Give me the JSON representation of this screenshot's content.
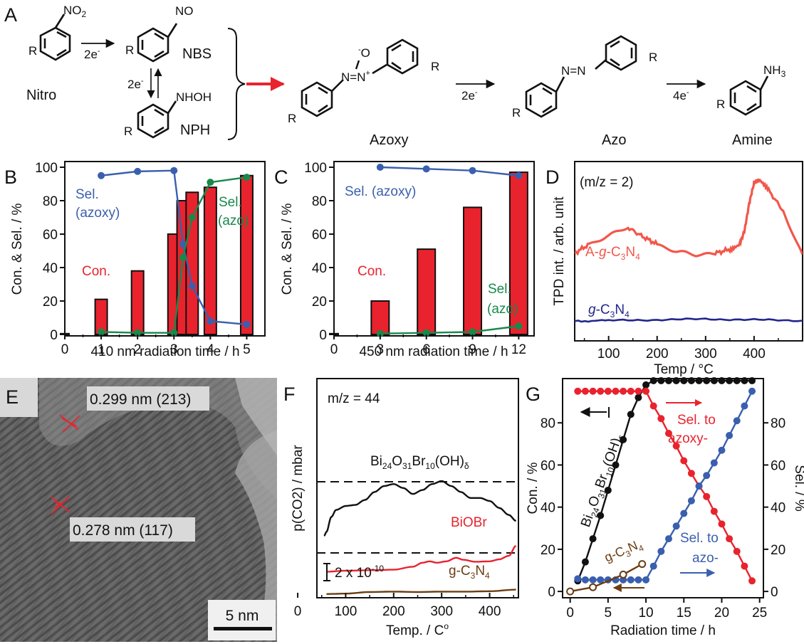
{
  "panel_labels": {
    "a": "A",
    "b": "B",
    "c": "C",
    "d": "D",
    "e": "E",
    "f": "F",
    "g": "G"
  },
  "scheme": {
    "nitro_sub": "NO",
    "nitro_sub_sub": "2",
    "nitro_name": "Nitro",
    "nbs_sub": "NO",
    "nbs_name": "NBS",
    "nph_sub": "NHOH",
    "nph_name": "NPH",
    "step1_electrons": "2e",
    "step2_electrons": "2e",
    "step3_electrons": "2e",
    "step4_electrons": "4e",
    "electron_charge": "-",
    "r_group": "R",
    "azoxy_o": "O",
    "azoxy_o_charge": "-",
    "azoxy_core": "N=N",
    "azoxy_n_charge": "+",
    "azoxy_name": "Azoxy",
    "azo_core": "N=N",
    "azo_name": "Azo",
    "amine_sub": "NH",
    "amine_sub_sub": "3",
    "amine_name": "Amine",
    "arrow_color": "#e8232e"
  },
  "colors": {
    "red": "#e8232e",
    "blue": "#3a5fae",
    "green": "#17894a",
    "black": "#111111",
    "brown": "#6b3d12",
    "navy": "#23268c",
    "salmon": "#f2574b"
  },
  "chart_data": [
    {
      "panel": "B",
      "type": "bar",
      "xlabel": "410 nm radiation time / h",
      "ylabel": "Con. & Sel. / %",
      "xlim": [
        0,
        5.5
      ],
      "ylim": [
        0,
        100
      ],
      "xticks": [
        "0",
        "1",
        "2",
        "3",
        "4",
        "5"
      ],
      "yticks": [
        "0",
        "20",
        "40",
        "60",
        "80",
        "100"
      ],
      "bars": {
        "name": "Con.",
        "x": [
          0,
          1,
          2,
          3,
          3.25,
          3.5,
          4,
          5
        ],
        "values": [
          0.5,
          21,
          38,
          60,
          80,
          85,
          88,
          95
        ]
      },
      "series": [
        {
          "name": "Sel. (azoxy)",
          "x": [
            1,
            2,
            3,
            3.25,
            3.5,
            4,
            5
          ],
          "values": [
            95,
            97.5,
            98,
            54,
            29,
            8,
            6
          ]
        },
        {
          "name": "Sel. (azo)",
          "x": [
            1,
            2,
            3,
            3.25,
            3.5,
            4,
            5
          ],
          "values": [
            1.5,
            1,
            1,
            46,
            70,
            91,
            94
          ]
        }
      ],
      "labels": {
        "sel_azoxy_1": "Sel.",
        "sel_azoxy_2": "(azoxy)",
        "sel_azo_1": "Sel.",
        "sel_azo_2": "(azo)",
        "con": "Con."
      }
    },
    {
      "panel": "C",
      "type": "bar",
      "xlabel": "450 nm radiation time / h",
      "ylabel": "Con. & Sel. / %",
      "xlim": [
        0,
        13
      ],
      "ylim": [
        0,
        100
      ],
      "xticks": [
        "0",
        "3",
        "6",
        "9",
        "12"
      ],
      "yticks": [
        "0",
        "20",
        "40",
        "60",
        "80",
        "100"
      ],
      "bars": {
        "name": "Con.",
        "x": [
          0,
          3,
          6,
          9,
          12
        ],
        "values": [
          0.5,
          20,
          51,
          76,
          97
        ]
      },
      "series": [
        {
          "name": "Sel. (azoxy)",
          "x": [
            3,
            6,
            9,
            12
          ],
          "values": [
            100,
            99,
            98,
            95
          ]
        },
        {
          "name": "Sel. (azo)",
          "x": [
            3,
            6,
            9,
            12
          ],
          "values": [
            0.5,
            1,
            1.5,
            5
          ]
        }
      ],
      "labels": {
        "sel_azoxy": "Sel. (azoxy)",
        "sel_azo_1": "Sel.",
        "sel_azo_2": "(azo)",
        "con": "Con."
      }
    },
    {
      "panel": "D",
      "type": "line",
      "xlabel": "Temp / °C",
      "ylabel": "TPD int. / arb. unit",
      "annotation": "(m/z = 2)",
      "xlim": [
        30,
        500
      ],
      "xticks": [
        "100",
        "200",
        "300",
        "400"
      ],
      "series": [
        {
          "name": "A-g-C3N4",
          "x": [
            30,
            60,
            100,
            140,
            170,
            200,
            240,
            280,
            320,
            350,
            370,
            380,
            390,
            400,
            410,
            430,
            460,
            500
          ],
          "values": [
            2.95,
            3.3,
            3.6,
            3.95,
            3.6,
            3.3,
            3.0,
            2.85,
            2.95,
            3.1,
            3.3,
            3.8,
            4.9,
            5.7,
            5.8,
            5.4,
            4.6,
            2.9
          ]
        },
        {
          "name": "g-C3N4",
          "x": [
            30,
            100,
            200,
            300,
            400,
            500
          ],
          "values": [
            0.3,
            0.32,
            0.35,
            0.38,
            0.35,
            0.32
          ]
        }
      ],
      "labels": {
        "a_prefix": "A-",
        "g": "g",
        "c3n4_pre": "-C",
        "c3n4_sub1": "3",
        "c3n4_n": "N",
        "c3n4_sub2": "4"
      }
    },
    {
      "panel": "F",
      "type": "line",
      "xlabel": "Temp. / C",
      "xlabel_super": "o",
      "ylabel": "p(CO2) / mbar",
      "annotation": "m/z = 44",
      "scale_bar": "2 x 10",
      "scale_bar_exp": "-10",
      "xlim": [
        40,
        460
      ],
      "xticks": [
        "0",
        "100",
        "200",
        "300",
        "400"
      ],
      "series": [
        {
          "name": "Bi24O31Br10(OH)δ",
          "x": [
            55,
            60,
            70,
            80,
            100,
            120,
            140,
            160,
            180,
            200,
            220,
            240,
            260,
            280,
            300,
            320,
            340,
            360,
            380,
            400,
            420,
            440,
            455
          ],
          "values": [
            3.0,
            3.2,
            3.95,
            4.3,
            4.5,
            4.55,
            4.8,
            5.2,
            5.5,
            5.6,
            5.4,
            5.1,
            5.3,
            5.6,
            5.75,
            5.5,
            5.2,
            4.9,
            4.9,
            4.75,
            4.4,
            4.05,
            3.75
          ]
        },
        {
          "name": "BiOBr",
          "x": [
            60,
            100,
            160,
            200,
            240,
            260,
            275,
            290,
            310,
            330,
            345,
            370,
            400,
            420,
            440,
            455
          ],
          "values": [
            1.2,
            1.25,
            1.28,
            1.3,
            1.45,
            1.65,
            1.72,
            1.65,
            1.72,
            1.9,
            1.8,
            1.7,
            1.72,
            1.82,
            2.0,
            2.5
          ]
        },
        {
          "name": "g-C3N4",
          "x": [
            60,
            100,
            150,
            200,
            250,
            300,
            350,
            400,
            455
          ],
          "values": [
            0.08,
            0.1,
            0.18,
            0.2,
            0.18,
            0.2,
            0.2,
            0.22,
            0.3
          ]
        }
      ],
      "labels": {
        "bi_1": "Bi",
        "bi_2": "24",
        "bi_3": "O",
        "bi_4": "31",
        "bi_5": "Br",
        "bi_6": "10",
        "bi_7": "(OH)",
        "bi_8": "δ",
        "biobr": "BiOBr",
        "gcn_1": "g-C",
        "gcn_2": "3",
        "gcn_3": "N",
        "gcn_4": "4"
      }
    },
    {
      "panel": "G",
      "type": "line",
      "xlabel": "Radiation time / h",
      "ylabel_left": "Con. / %",
      "ylabel_right": "Sel. / %",
      "xlim": [
        -1,
        25.5
      ],
      "ylim": [
        -3,
        101
      ],
      "xticks": [
        "0",
        "5",
        "10",
        "15",
        "20",
        "25"
      ],
      "yticks_left": [
        "0",
        "20",
        "40",
        "60",
        "80"
      ],
      "yticks_right": [
        "0",
        "20",
        "40",
        "60",
        "80"
      ],
      "series": [
        {
          "name": "Bi24O31Br10(OH)δ",
          "x": [
            1,
            2,
            3,
            4,
            5,
            6,
            7,
            8,
            9,
            10,
            11,
            12,
            13,
            14,
            15,
            16,
            17,
            18,
            19,
            20,
            21,
            22,
            23,
            24
          ],
          "values": [
            5,
            14,
            25,
            36,
            48,
            60,
            72,
            84,
            92,
            98,
            100,
            100,
            100,
            100,
            100,
            100,
            100,
            100,
            100,
            100,
            100,
            100,
            100,
            100
          ]
        },
        {
          "name": "Sel. to azoxy-",
          "x": [
            1,
            2,
            3,
            4,
            5,
            6,
            7,
            8,
            9,
            10,
            11,
            12,
            13,
            14,
            15,
            16,
            17,
            18,
            19,
            20,
            21,
            22,
            23,
            24
          ],
          "values": [
            95,
            95,
            95,
            95,
            95,
            95,
            95,
            95,
            95,
            95,
            88,
            82,
            75,
            69,
            62,
            56,
            50,
            45,
            38,
            32,
            25,
            19,
            12,
            5
          ]
        },
        {
          "name": "Sel. to azo-",
          "x": [
            1,
            2,
            3,
            4,
            5,
            6,
            7,
            8,
            9,
            10,
            11,
            12,
            13,
            14,
            15,
            16,
            17,
            18,
            19,
            20,
            21,
            22,
            23,
            24
          ],
          "values": [
            6,
            5.5,
            5.5,
            5.5,
            5.5,
            5.5,
            5.5,
            5.5,
            5.5,
            5.5,
            12,
            19,
            25,
            31,
            37,
            43,
            50,
            55,
            61,
            67,
            74,
            81,
            88,
            95
          ]
        },
        {
          "name": "g-C3N4",
          "x": [
            0,
            3,
            7,
            9.5
          ],
          "values": [
            0,
            2,
            8,
            13
          ]
        }
      ],
      "labels": {
        "sel_azoxy_1": "Sel. to",
        "sel_azoxy_2": "azoxy-",
        "sel_azo_1": "Sel. to",
        "sel_azo_2": "azo-",
        "bi_1": "Bi",
        "bi_2": "24",
        "bi_3": "O",
        "bi_4": "31",
        "bi_5": "Br",
        "bi_6": "10",
        "bi_7": "(OH)",
        "bi_8": "δ",
        "gcn_1": "g-C",
        "gcn_2": "3",
        "gcn_3": "N",
        "gcn_4": "4"
      }
    }
  ],
  "tem": {
    "d1": "0.299 nm (213)",
    "d2": "0.278 nm (117)",
    "scale": "5 nm"
  }
}
